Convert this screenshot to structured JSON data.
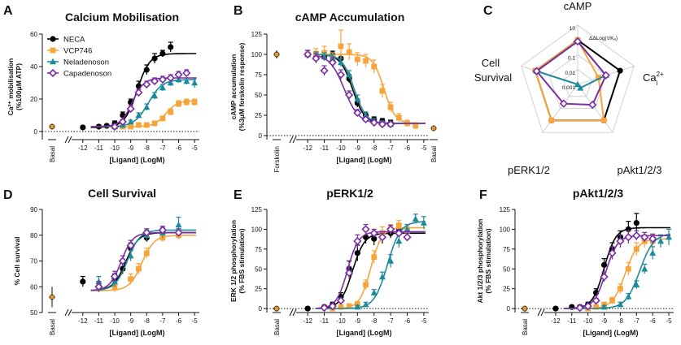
{
  "figure": {
    "legend": [
      "NECA",
      "VCP746",
      "Neladenoson",
      "Capadenoson"
    ],
    "colors": {
      "NECA": "#000000",
      "VCP746": "#f7a53b",
      "Neladenoson": "#1d8a9c",
      "Capadenoson": "#7b2fa3"
    },
    "x_ticks": [
      "-12",
      "-11",
      "-10",
      "-9",
      "-8",
      "-7",
      "-6",
      "-5"
    ]
  },
  "chart_data": [
    {
      "panel": "A",
      "type": "line",
      "title": "Calcium Mobilisation",
      "ylabel": "Ca²⁺ mobilisation (%100μM ATP)",
      "xlabel": "[Ligand] (LogM)",
      "xlim": [
        -12.5,
        -4.7
      ],
      "ylim": [
        -5,
        60
      ],
      "yticks": [
        0,
        20,
        40,
        60
      ],
      "basal_label": "Basal",
      "basal_value": 3,
      "basal_err": 1.5,
      "series": [
        {
          "name": "NECA",
          "x": [
            -12,
            -11,
            -10.5,
            -10,
            -9.5,
            -9,
            -8.5,
            -8,
            -7.5,
            -7,
            -6.5
          ],
          "y": [
            2.5,
            3,
            3.5,
            5,
            10,
            18,
            28,
            38,
            45,
            48,
            52
          ],
          "err": [
            1,
            1,
            1,
            1.5,
            2,
            2,
            3,
            3,
            3,
            2,
            3
          ],
          "fit": [
            2.5,
            48,
            -8.6,
            1.1
          ]
        },
        {
          "name": "VCP746",
          "x": [
            -9.5,
            -9,
            -8.5,
            -8,
            -7.5,
            -7,
            -6.5,
            -6,
            -5.5,
            -5
          ],
          "y": [
            3,
            3,
            4,
            4,
            5,
            8,
            12,
            17,
            18,
            18
          ],
          "err": [
            1,
            1,
            1,
            1,
            1.5,
            1.5,
            2,
            2,
            2,
            2
          ],
          "fit": [
            3,
            19,
            -6.8,
            1.2
          ]
        },
        {
          "name": "Neladenoson",
          "x": [
            -10,
            -9.5,
            -9,
            -8.5,
            -8,
            -7.5,
            -7,
            -6.5,
            -6,
            -5.5,
            -5
          ],
          "y": [
            3,
            4,
            6,
            10,
            15,
            22,
            27,
            30,
            32,
            31,
            30
          ],
          "err": [
            1,
            1,
            1,
            1.5,
            2,
            2,
            2,
            2,
            2,
            2,
            3
          ],
          "fit": [
            3,
            32,
            -7.9,
            1
          ]
        },
        {
          "name": "Capadenoson",
          "x": [
            -10,
            -9.5,
            -9,
            -8.5,
            -8,
            -7.5,
            -7,
            -6.5,
            -6,
            -5.5
          ],
          "y": [
            3,
            6,
            14,
            24,
            29,
            31,
            32,
            33,
            35,
            36
          ],
          "err": [
            1,
            1.5,
            2,
            2,
            2,
            2,
            2,
            2,
            2,
            2
          ],
          "fit": [
            3,
            33,
            -8.9,
            1.2
          ]
        }
      ]
    },
    {
      "panel": "B",
      "type": "line",
      "title": "cAMP Accumulation",
      "ylabel": "cAMP accumulation (%3μM forskolin response)",
      "xlabel": "[Ligand] (LogM)",
      "xlim": [
        -12.5,
        -4.7
      ],
      "ylim": [
        -5,
        125
      ],
      "yticks": [
        0,
        25,
        50,
        75,
        100,
        125
      ],
      "left_label": "Forskolin",
      "left_value": 100,
      "left_err": 5,
      "basal_label": "Basal",
      "basal_value": 9,
      "basal_err": 3,
      "series": [
        {
          "name": "NECA",
          "x": [
            -12,
            -11.5,
            -11,
            -10.5,
            -10,
            -9.5,
            -9,
            -8.5,
            -8,
            -7.5,
            -7
          ],
          "y": [
            100,
            98,
            97,
            100,
            95,
            70,
            40,
            25,
            20,
            18,
            16
          ],
          "err": [
            5,
            5,
            5,
            4,
            5,
            5,
            5,
            4,
            3,
            3,
            3
          ],
          "fit": [
            100,
            15,
            -9.3,
            1.2
          ]
        },
        {
          "name": "VCP746",
          "x": [
            -12,
            -11.5,
            -11,
            -10.5,
            -10,
            -9.5,
            -9,
            -8.5,
            -8,
            -7.5,
            -7,
            -6.5,
            -6,
            -5.5
          ],
          "y": [
            100,
            101,
            102,
            96,
            110,
            103,
            94,
            92,
            85,
            55,
            35,
            22,
            15,
            12
          ],
          "err": [
            5,
            6,
            8,
            6,
            20,
            10,
            8,
            8,
            8,
            8,
            6,
            5,
            4,
            4
          ],
          "fit": [
            100,
            15,
            -7.4,
            1.3
          ]
        },
        {
          "name": "Neladenoson",
          "x": [
            -12,
            -11.5,
            -11,
            -10.5,
            -10,
            -9.5,
            -9,
            -8.5,
            -8,
            -7.5,
            -7
          ],
          "y": [
            100,
            98,
            97,
            95,
            90,
            75,
            45,
            25,
            18,
            15,
            14
          ],
          "err": [
            5,
            5,
            5,
            5,
            5,
            5,
            5,
            4,
            3,
            3,
            3
          ],
          "fit": [
            100,
            15,
            -9.2,
            1.2
          ]
        },
        {
          "name": "Capadenoson",
          "x": [
            -12,
            -11.5,
            -11,
            -10.5,
            -10,
            -9.5,
            -9,
            -8.5,
            -8,
            -7.5,
            -7
          ],
          "y": [
            100,
            95,
            80,
            90,
            75,
            50,
            28,
            20,
            16,
            14,
            14
          ],
          "err": [
            5,
            6,
            6,
            6,
            6,
            5,
            4,
            3,
            3,
            3,
            3
          ],
          "fit": [
            100,
            15,
            -9.8,
            1
          ]
        }
      ]
    },
    {
      "panel": "C",
      "type": "radar",
      "title": "",
      "axes": [
        "cAMP",
        "Ca²⁺ᵢ",
        "pAkt1/2/3",
        "pERK1/2",
        "Cell Survival"
      ],
      "scale_label": "ΔΔLog(τ/Kₐ)",
      "rings": [
        "10",
        "1",
        "0.1",
        "0.01",
        "0.001"
      ],
      "series": [
        {
          "name": "NECA",
          "values": [
            1,
            1,
            1,
            1,
            1
          ]
        },
        {
          "name": "VCP746",
          "values": [
            1,
            0.03,
            1,
            1,
            1
          ]
        },
        {
          "name": "Neladenoson",
          "values": [
            0.8,
            0.1,
            0.002,
            0.001,
            0.8
          ]
        },
        {
          "name": "Capadenoson",
          "values": [
            0.8,
            0.1,
            0.05,
            0.04,
            0.8
          ]
        }
      ]
    },
    {
      "panel": "D",
      "type": "line",
      "title": "Cell Survival",
      "ylabel": "% Cell survival",
      "xlabel": "[Ligand] (LogM)",
      "xlim": [
        -12.5,
        -4.7
      ],
      "ylim": [
        50,
        90
      ],
      "yticks": [
        50,
        60,
        70,
        80,
        90
      ],
      "basal_label": "Basal",
      "basal_value": 56,
      "basal_err": 4,
      "series": [
        {
          "name": "NECA",
          "x": [
            -12,
            -11,
            -10,
            -9.5,
            -9,
            -8,
            -7,
            -6
          ],
          "y": [
            62,
            60,
            63,
            67,
            75,
            79,
            81,
            80
          ],
          "err": [
            2,
            2,
            2,
            2,
            2,
            1.5,
            1.5,
            1.5
          ],
          "fit": [
            58.5,
            81,
            -9.3,
            1.1
          ]
        },
        {
          "name": "VCP746",
          "x": [
            -11,
            -10,
            -9,
            -8.5,
            -8,
            -7,
            -6
          ],
          "y": [
            60,
            60,
            63,
            67,
            73,
            79,
            80
          ],
          "err": [
            2,
            2,
            2,
            2,
            2,
            1.5,
            1.5
          ],
          "fit": [
            58.5,
            80,
            -8.3,
            1.1
          ]
        },
        {
          "name": "Neladenoson",
          "x": [
            -11,
            -10,
            -9,
            -8,
            -7,
            -6
          ],
          "y": [
            62,
            62,
            72,
            80,
            81,
            84
          ],
          "err": [
            2,
            2,
            2,
            2,
            2,
            3
          ],
          "fit": [
            58.5,
            82,
            -9.2,
            1.1
          ]
        },
        {
          "name": "Capadenoson",
          "x": [
            -11,
            -10,
            -9.5,
            -9,
            -8,
            -7,
            -6
          ],
          "y": [
            60,
            64,
            70,
            76,
            81,
            82,
            81
          ],
          "err": [
            2,
            2,
            2,
            2,
            1.5,
            1.5,
            1.5
          ],
          "fit": [
            58.5,
            81,
            -9.6,
            1.2
          ]
        }
      ]
    },
    {
      "panel": "E",
      "type": "line",
      "title": "pERK1/2",
      "ylabel": "ERK 1/2 phosphorylation (% FBS stimulation)",
      "xlabel": "[Ligand] (LogM)",
      "xlim": [
        -12.5,
        -4.7
      ],
      "ylim": [
        -5,
        125
      ],
      "yticks": [
        0,
        25,
        50,
        75,
        100,
        125
      ],
      "basal_label": "Basal",
      "basal_value": 0,
      "basal_err": 2,
      "series": [
        {
          "name": "NECA",
          "x": [
            -12,
            -11,
            -10.5,
            -10,
            -9.5,
            -9,
            -8.5,
            -8,
            -7.5,
            -7,
            -6.5
          ],
          "y": [
            0,
            2,
            5,
            15,
            50,
            70,
            90,
            88,
            90,
            95,
            100
          ],
          "err": [
            2,
            2,
            3,
            5,
            10,
            10,
            8,
            8,
            8,
            6,
            5
          ],
          "fit": [
            0,
            95,
            -9.3,
            1.2
          ]
        },
        {
          "name": "VCP746",
          "x": [
            -10.5,
            -10,
            -9.5,
            -9,
            -8.5,
            -8,
            -7.5,
            -7,
            -6.5,
            -6
          ],
          "y": [
            0,
            2,
            3,
            5,
            30,
            65,
            95,
            100,
            105,
            98
          ],
          "err": [
            2,
            2,
            3,
            4,
            6,
            8,
            8,
            6,
            6,
            6
          ],
          "fit": [
            0,
            102,
            -8.2,
            1.3
          ]
        },
        {
          "name": "Neladenoson",
          "x": [
            -9,
            -8.5,
            -8,
            -7.5,
            -7,
            -6.5,
            -6,
            -5.5,
            -5
          ],
          "y": [
            2,
            5,
            20,
            40,
            60,
            85,
            100,
            113,
            108
          ],
          "err": [
            2,
            3,
            4,
            6,
            8,
            8,
            6,
            6,
            8
          ],
          "fit": [
            0,
            110,
            -7.2,
            1.1
          ]
        },
        {
          "name": "Capadenoson",
          "x": [
            -11,
            -10.5,
            -10,
            -9.5,
            -9,
            -8.5,
            -8,
            -7.5,
            -7,
            -6.5,
            -6
          ],
          "y": [
            1,
            3,
            10,
            45,
            85,
            100,
            95,
            90,
            100,
            95,
            90
          ],
          "err": [
            2,
            2,
            3,
            8,
            8,
            6,
            5,
            5,
            5,
            5,
            5
          ],
          "fit": [
            0,
            97,
            -9.6,
            1.3
          ]
        }
      ]
    },
    {
      "panel": "F",
      "type": "line",
      "title": "pAkt1/2/3",
      "ylabel": "Akt 1/2/3 phosphorylation (% FBS stimulation)",
      "xlabel": "[Ligand] (LogM)",
      "xlim": [
        -12.5,
        -4.7
      ],
      "ylim": [
        -5,
        125
      ],
      "yticks": [
        0,
        25,
        50,
        75,
        100,
        125
      ],
      "basal_label": "Basal",
      "basal_value": 0,
      "basal_err": 2,
      "series": [
        {
          "name": "NECA",
          "x": [
            -12,
            -11,
            -10.5,
            -10,
            -9.5,
            -9,
            -8.5,
            -8,
            -7.5,
            -7
          ],
          "y": [
            0,
            2,
            2,
            5,
            20,
            55,
            75,
            90,
            100,
            108
          ],
          "err": [
            2,
            2,
            2,
            3,
            5,
            8,
            8,
            8,
            10,
            12
          ],
          "fit": [
            0,
            102,
            -9,
            1.2
          ]
        },
        {
          "name": "VCP746",
          "x": [
            -10,
            -9.5,
            -9,
            -8.5,
            -8,
            -7.5,
            -7,
            -6.5,
            -6
          ],
          "y": [
            0,
            2,
            5,
            10,
            25,
            50,
            75,
            85,
            85
          ],
          "err": [
            2,
            2,
            3,
            4,
            6,
            8,
            8,
            8,
            8
          ],
          "fit": [
            0,
            88,
            -7.7,
            1.1
          ]
        },
        {
          "name": "Neladenoson",
          "x": [
            -9,
            -8,
            -7.5,
            -7,
            -6.5,
            -6,
            -5.5,
            -5
          ],
          "y": [
            2,
            5,
            15,
            30,
            50,
            70,
            85,
            90
          ],
          "err": [
            2,
            3,
            4,
            5,
            6,
            8,
            8,
            10
          ],
          "fit": [
            0,
            95,
            -6.8,
            1
          ]
        },
        {
          "name": "Capadenoson",
          "x": [
            -10.5,
            -10,
            -9.5,
            -9,
            -8.5,
            -8,
            -7.5,
            -7,
            -6.5,
            -6
          ],
          "y": [
            1,
            3,
            10,
            40,
            70,
            85,
            90,
            92,
            90,
            88
          ],
          "err": [
            2,
            2,
            3,
            6,
            8,
            8,
            8,
            6,
            6,
            6
          ],
          "fit": [
            0,
            92,
            -8.9,
            1.2
          ]
        }
      ]
    }
  ]
}
